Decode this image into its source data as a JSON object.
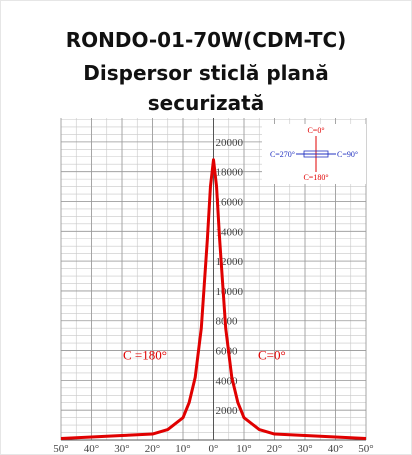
{
  "chart_data": {
    "type": "line",
    "title": "RONDO-01-70W(CDM-TC)",
    "subtitle": [
      "Dispersor sticlă plană",
      "securizată"
    ],
    "x": [
      -50,
      -45,
      -40,
      -30,
      -20,
      -15,
      -10,
      -8,
      -6,
      -4,
      -2,
      -1,
      0,
      1,
      2,
      4,
      6,
      8,
      10,
      15,
      20,
      30,
      40,
      45,
      50
    ],
    "series": [
      {
        "color": "#e00000",
        "values": [
          100,
          150,
          200,
          300,
          400,
          700,
          1500,
          2500,
          4200,
          7500,
          13500,
          17000,
          18800,
          17000,
          13500,
          7500,
          4200,
          2500,
          1500,
          700,
          400,
          300,
          200,
          150,
          100
        ]
      }
    ],
    "xlim": [
      -50,
      50
    ],
    "xticks": [
      {
        "value": -50,
        "label": "50°"
      },
      {
        "value": -40,
        "label": "40°"
      },
      {
        "value": -30,
        "label": "30°"
      },
      {
        "value": -20,
        "label": "20°"
      },
      {
        "value": -10,
        "label": "10°"
      },
      {
        "value": 0,
        "label": "0°"
      },
      {
        "value": 10,
        "label": "10°"
      },
      {
        "value": 20,
        "label": "20°"
      },
      {
        "value": 30,
        "label": "30°"
      },
      {
        "value": 40,
        "label": "40°"
      },
      {
        "value": 50,
        "label": "50°"
      }
    ],
    "ylim": [
      0,
      21600
    ],
    "yticks": [
      2000,
      4000,
      6000,
      8000,
      10000,
      12000,
      14000,
      16000,
      18000,
      20000
    ],
    "grid": true,
    "annotations": {
      "left": "C =180°",
      "right": "C=0°"
    },
    "legend": {
      "top": "C=0°",
      "left": "C=270°",
      "right": "C=90°",
      "bottom": "C=180°"
    }
  }
}
